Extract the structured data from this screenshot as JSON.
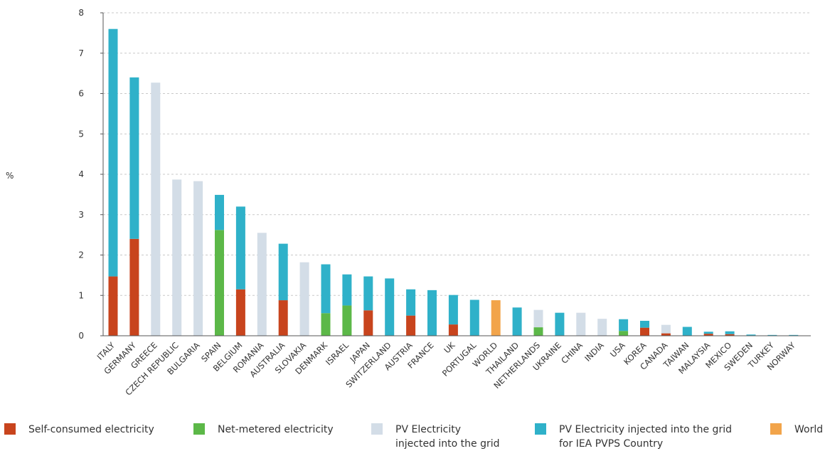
{
  "chart_data": {
    "type": "bar",
    "stacked": true,
    "ylabel": "%",
    "ylim": [
      0,
      8
    ],
    "yticks": [
      0,
      1,
      2,
      3,
      4,
      5,
      6,
      7,
      8
    ],
    "grid": true,
    "legend_position": "bottom",
    "categories": [
      "ITALY",
      "GERMANY",
      "GREECE",
      "CZECH REPUBLIC",
      "BULGARIA",
      "SPAIN",
      "BELGIUM",
      "ROMANIA",
      "AUSTRALIA",
      "SLOVAKIA",
      "DENMARK",
      "ISRAEL",
      "JAPAN",
      "SWITZERLAND",
      "AUSTRIA",
      "FRANCE",
      "UK",
      "PORTUGAL",
      "WORLD",
      "THAILAND",
      "NETHERLANDS",
      "UKRAINE",
      "CHINA",
      "INDIA",
      "USA",
      "KOREA",
      "CANADA",
      "TAIWAN",
      "MALAYSIA",
      "MEXICO",
      "SWEDEN",
      "TURKEY",
      "NORWAY"
    ],
    "series": [
      {
        "name": "Self-consumed electricity",
        "color": "#c8441d",
        "values": [
          1.47,
          2.4,
          0,
          0,
          0,
          0,
          1.15,
          0,
          0.88,
          0,
          0,
          0,
          0.63,
          0,
          0.5,
          0,
          0.28,
          0,
          0,
          0,
          0,
          0,
          0,
          0,
          0,
          0.2,
          0.06,
          0,
          0.05,
          0.04,
          0,
          0.01,
          0
        ]
      },
      {
        "name": "Net-metered electricity",
        "color": "#5cb848",
        "values": [
          0,
          0,
          0,
          0,
          0,
          2.62,
          0,
          0,
          0,
          0,
          0.56,
          0.75,
          0,
          0,
          0,
          0,
          0,
          0,
          0,
          0,
          0.21,
          0,
          0,
          0,
          0.12,
          0,
          0,
          0,
          0,
          0,
          0,
          0,
          0
        ]
      },
      {
        "name": "PV Electricity\ninjected into the grid",
        "color": "#d3dde7",
        "values": [
          0,
          0,
          6.27,
          3.87,
          3.83,
          0,
          0,
          2.55,
          0,
          1.82,
          0,
          0,
          0,
          0,
          0,
          0,
          0,
          0,
          0,
          0,
          0.43,
          0,
          0.57,
          0.42,
          0,
          0,
          0.21,
          0,
          0,
          0,
          0,
          0,
          0
        ]
      },
      {
        "name": "PV Electricity injected into the grid\nfor IEA PVPS Country",
        "color": "#2fb1c9",
        "values": [
          6.13,
          4.0,
          0,
          0,
          0,
          0.87,
          2.05,
          0,
          1.4,
          0,
          1.21,
          0.77,
          0.84,
          1.42,
          0.65,
          1.13,
          0.73,
          0.89,
          0,
          0.7,
          0,
          0.57,
          0,
          0,
          0.29,
          0.17,
          0,
          0.22,
          0.05,
          0.07,
          0.03,
          0.01,
          0.02
        ]
      },
      {
        "name": "World",
        "color": "#f2a44a",
        "values": [
          0,
          0,
          0,
          0,
          0,
          0,
          0,
          0,
          0,
          0,
          0,
          0,
          0,
          0,
          0,
          0,
          0,
          0,
          0.88,
          0,
          0,
          0,
          0,
          0,
          0,
          0,
          0,
          0,
          0,
          0,
          0,
          0,
          0
        ]
      }
    ]
  }
}
